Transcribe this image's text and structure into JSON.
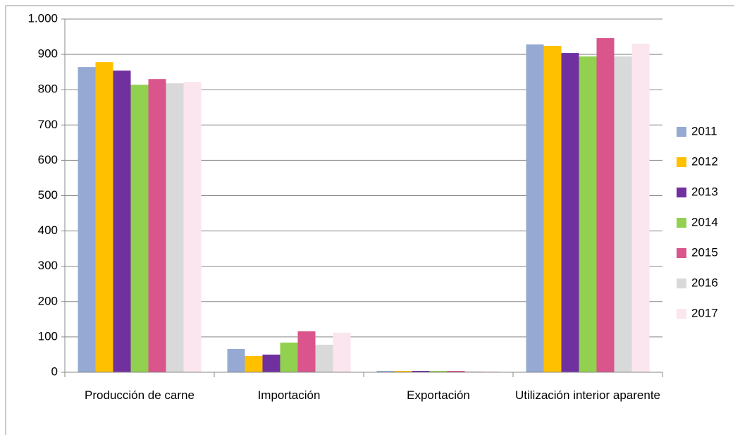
{
  "chart_data": {
    "type": "bar",
    "categories": [
      "Producción de carne",
      "Importación",
      "Exportación",
      "Utilización interior aparente"
    ],
    "series": [
      {
        "name": "2011",
        "color": "#95a9d2",
        "values": [
          864,
          66,
          4,
          928
        ]
      },
      {
        "name": "2012",
        "color": "#ffc000",
        "values": [
          878,
          46,
          4,
          924
        ]
      },
      {
        "name": "2013",
        "color": "#7030a0",
        "values": [
          854,
          50,
          4,
          904
        ]
      },
      {
        "name": "2014",
        "color": "#92d050",
        "values": [
          814,
          84,
          4,
          894
        ]
      },
      {
        "name": "2015",
        "color": "#d9558b",
        "values": [
          830,
          116,
          4,
          946
        ]
      },
      {
        "name": "2016",
        "color": "#d9d9d9",
        "values": [
          818,
          78,
          3,
          894
        ]
      },
      {
        "name": "2017",
        "color": "#fbe5ee",
        "values": [
          822,
          112,
          3,
          930
        ]
      }
    ],
    "ylim": [
      0,
      1000
    ],
    "yticks": [
      0,
      100,
      200,
      300,
      400,
      500,
      600,
      700,
      800,
      900,
      {
        "value": 1000,
        "label": "1.000"
      }
    ],
    "grid": true,
    "legend": "right"
  }
}
